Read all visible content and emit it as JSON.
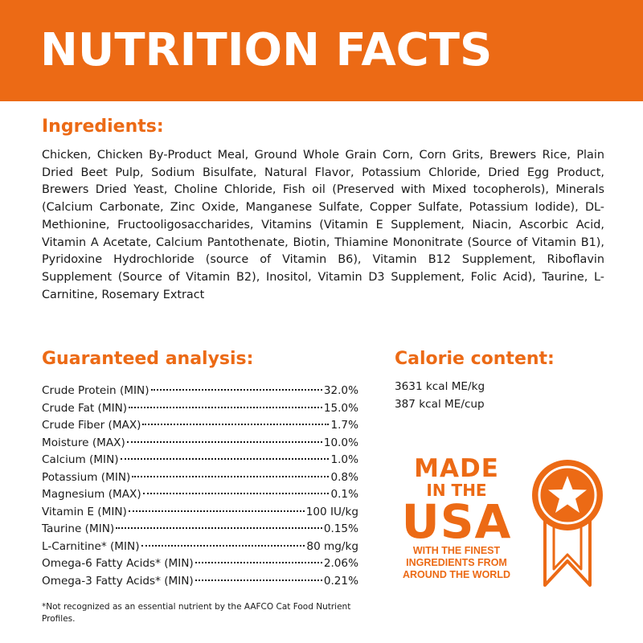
{
  "header": {
    "title": "NUTRITION FACTS"
  },
  "ingredients": {
    "heading": "Ingredients:",
    "text": "Chicken, Chicken By-Product Meal, Ground Whole Grain Corn, Corn Grits, Brewers Rice, Plain Dried Beet Pulp, Sodium Bisulfate, Natural Flavor, Potassium Chloride, Dried Egg Product, Brewers Dried Yeast, Choline Chloride, Fish oil (Preserved with Mixed tocopherols), Minerals (Calcium Carbonate, Zinc Oxide, Manganese Sulfate, Copper Sulfate, Potassium Iodide), DL-Methionine, Fructooligosaccharides, Vitamins (Vitamin E Supplement, Niacin, Ascorbic Acid, Vitamin A Acetate, Calcium Pantothenate, Biotin, Thiamine Mononitrate (Source of Vitamin B1), Pyridoxine Hydrochloride (source of Vitamin B6), Vitamin B12 Supplement, Riboflavin Supplement (Source of Vitamin B2), Inositol, Vitamin D3 Supplement, Folic Acid), Taurine, L-Carnitine, Rosemary Extract"
  },
  "analysis": {
    "heading": "Guaranteed analysis:",
    "rows": [
      {
        "label": "Crude Protein (MIN)",
        "value": "32.0%"
      },
      {
        "label": "Crude Fat (MIN)",
        "value": "15.0%"
      },
      {
        "label": "Crude Fiber (MAX)",
        "value": "1.7%"
      },
      {
        "label": "Moisture (MAX)",
        "value": "10.0%"
      },
      {
        "label": "Calcium (MIN)",
        "value": "1.0%"
      },
      {
        "label": "Potassium (MIN)",
        "value": "0.8%"
      },
      {
        "label": "Magnesium (MAX)",
        "value": "0.1%"
      },
      {
        "label": "Vitamin E (MIN)",
        "value": "100 IU/kg"
      },
      {
        "label": "Taurine (MIN)",
        "value": "0.15%"
      },
      {
        "label": "L-Carnitine* (MIN)",
        "value": "80 mg/kg"
      },
      {
        "label": "Omega-6 Fatty Acids* (MIN)",
        "value": "2.06%"
      },
      {
        "label": "Omega-3 Fatty Acids* (MIN)",
        "value": "0.21%"
      }
    ],
    "footnote": "*Not recognized as an essential nutrient by the AAFCO Cat Food Nutrient Profiles."
  },
  "calorie": {
    "heading": "Calorie content:",
    "lines": [
      "3631 kcal ME/kg",
      "387 kcal ME/cup"
    ]
  },
  "badge": {
    "made": "MADE",
    "in_the": "IN THE",
    "usa": "USA",
    "tagline": [
      "WITH THE FINEST",
      "INGREDIENTS FROM",
      "AROUND THE WORLD"
    ],
    "icon": "star-ribbon-icon"
  },
  "colors": {
    "accent": "#ec6a15",
    "text": "#1a1a1a",
    "background": "#ffffff"
  }
}
